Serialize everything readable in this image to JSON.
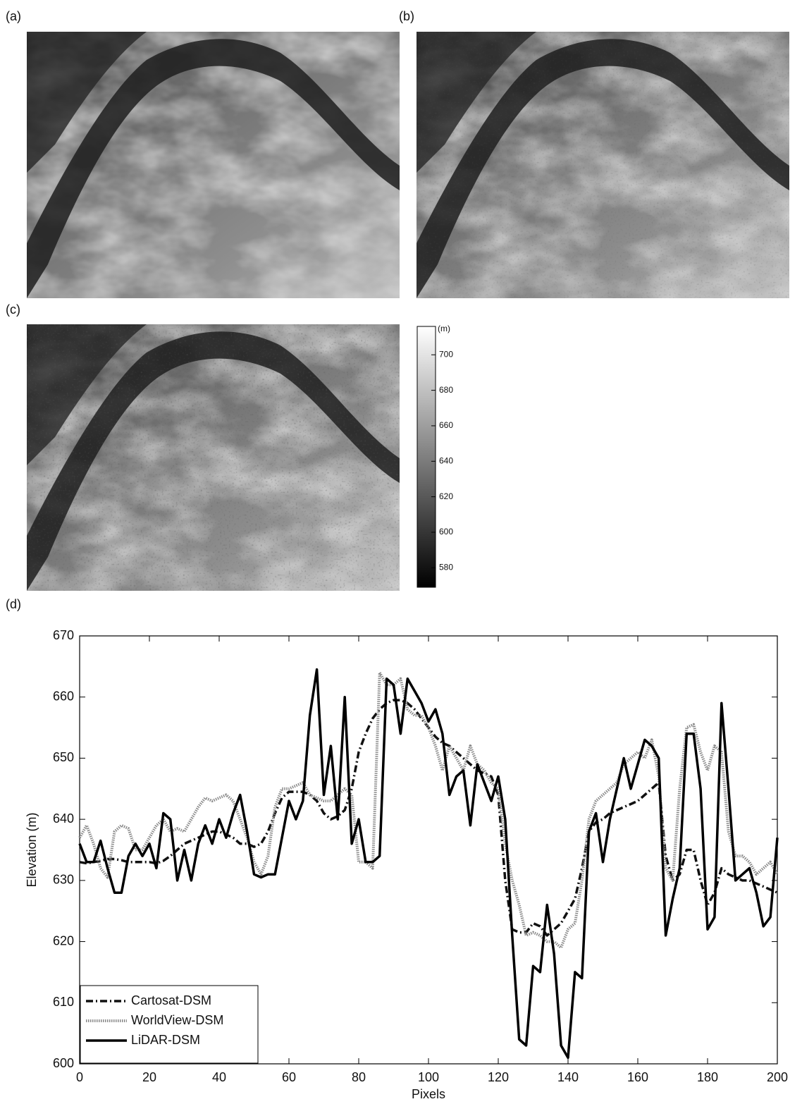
{
  "panels": [
    {
      "label": "(a)"
    },
    {
      "label": "(b)"
    },
    {
      "label": "(c)"
    },
    {
      "label": "(d)"
    }
  ],
  "colorbar": {
    "label": "(m)",
    "lim": [
      569,
      716
    ],
    "ticks": [
      580,
      600,
      620,
      640,
      660,
      680,
      700
    ]
  },
  "chart_data": {
    "type": "line",
    "xlabel": "Pixels",
    "ylabel": "Elevation (m)",
    "xlim": [
      0,
      200
    ],
    "ylim": [
      600,
      670
    ],
    "xticks": [
      0,
      20,
      40,
      60,
      80,
      100,
      120,
      140,
      160,
      180,
      200
    ],
    "yticks": [
      600,
      610,
      620,
      630,
      640,
      650,
      660,
      670
    ],
    "grid": false,
    "legend": "lower left",
    "x": [
      0,
      2,
      4,
      6,
      8,
      10,
      12,
      14,
      16,
      18,
      20,
      22,
      24,
      26,
      28,
      30,
      32,
      34,
      36,
      38,
      40,
      42,
      44,
      46,
      48,
      50,
      52,
      54,
      56,
      58,
      60,
      62,
      64,
      66,
      68,
      70,
      72,
      74,
      76,
      78,
      80,
      82,
      84,
      86,
      88,
      90,
      92,
      94,
      96,
      98,
      100,
      102,
      104,
      106,
      108,
      110,
      112,
      114,
      116,
      118,
      120,
      122,
      124,
      126,
      128,
      130,
      132,
      134,
      136,
      138,
      140,
      142,
      144,
      146,
      148,
      150,
      152,
      154,
      156,
      158,
      160,
      162,
      164,
      166,
      168,
      170,
      172,
      174,
      176,
      178,
      180,
      182,
      184,
      186,
      188,
      190,
      192,
      194,
      196,
      198,
      200
    ],
    "series": [
      {
        "name": "Cartosat-DSM",
        "color": "#111111",
        "style": "dashdot",
        "values": [
          633,
          632.8,
          633,
          633.2,
          633.5,
          633.5,
          633.3,
          633,
          633,
          633,
          633,
          632.8,
          633.2,
          634,
          635,
          636,
          636.5,
          637,
          637.5,
          638,
          638,
          637.5,
          637,
          636,
          636,
          635.5,
          636,
          638,
          641,
          643.5,
          644.5,
          644.5,
          644.5,
          644,
          643,
          641,
          640,
          640.5,
          641.5,
          645,
          651,
          654,
          656.5,
          658,
          659,
          659.5,
          659.5,
          659,
          658,
          656.5,
          655,
          653.5,
          652.5,
          652,
          651,
          650,
          649,
          648,
          647.5,
          647,
          644,
          630,
          622,
          621.5,
          621.5,
          623,
          622.5,
          621,
          622,
          623,
          625,
          627,
          632,
          638,
          639.5,
          640,
          641,
          641.5,
          642,
          642.5,
          643,
          644,
          645,
          646,
          634,
          630,
          631,
          635,
          635,
          630,
          626,
          628,
          632,
          631,
          630.5,
          630,
          630,
          629.5,
          629,
          628.5,
          628
        ]
      },
      {
        "name": "WorldView-DSM",
        "color": "#8a8a8a",
        "style": "dotted",
        "values": [
          637,
          639,
          636,
          632,
          630.5,
          638,
          639,
          638.5,
          635,
          635,
          637,
          639,
          640,
          638,
          638.5,
          638,
          640,
          642,
          643.5,
          643,
          643.5,
          644,
          643,
          640,
          637,
          633,
          631,
          634,
          642,
          645,
          645,
          645.5,
          646,
          644,
          643.5,
          643,
          643,
          644,
          645,
          644,
          633,
          633,
          632,
          664,
          662,
          662,
          663,
          658,
          657,
          657,
          655,
          652,
          648,
          652,
          650,
          648,
          652,
          649,
          648,
          646,
          645,
          636,
          630,
          626,
          621,
          621.5,
          621,
          620,
          620,
          619,
          622,
          623,
          630,
          640,
          643,
          644,
          645,
          646,
          649,
          650,
          651,
          650,
          653,
          647,
          632,
          630,
          645,
          655,
          655.5,
          651,
          648,
          652,
          651,
          638,
          634,
          634,
          633,
          631,
          632,
          633,
          631
        ]
      },
      {
        "name": "LiDAR-DSM",
        "color": "#000000",
        "style": "solid",
        "values": [
          636,
          633,
          633,
          636.5,
          632,
          628,
          628,
          634,
          636,
          634,
          636,
          632,
          641,
          640,
          630,
          635,
          630,
          636,
          639,
          636,
          640,
          637,
          641,
          644,
          638,
          631,
          630.5,
          631,
          631,
          637,
          643,
          640,
          643,
          657,
          664.5,
          644,
          652,
          640,
          660,
          636,
          640,
          633,
          633,
          634,
          663,
          662,
          654,
          663,
          661,
          659,
          656,
          658,
          654,
          644,
          647,
          648,
          639,
          649,
          646,
          643,
          647,
          640,
          621,
          604,
          603,
          616,
          615,
          626,
          618,
          603,
          601,
          615,
          614,
          638,
          641,
          633,
          640,
          645,
          650,
          645,
          649,
          653,
          652,
          650,
          621,
          627,
          632,
          654,
          654,
          645,
          622,
          624,
          659,
          645,
          630,
          631,
          632,
          628,
          622.5,
          624,
          637
        ]
      }
    ]
  }
}
